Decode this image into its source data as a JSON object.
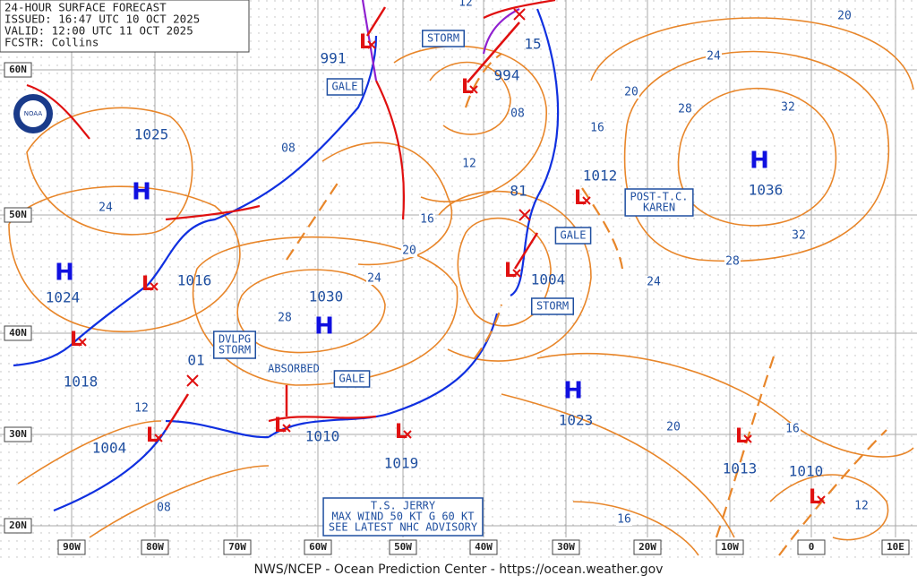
{
  "header": {
    "lines": [
      "24-HOUR SURFACE FORECAST",
      "ISSUED: 16:47 UTC 10 OCT 2025",
      "VALID: 12:00 UTC 11 OCT 2025",
      "FCSTR: Collins"
    ]
  },
  "lat_labels": [
    "60N",
    "50N",
    "40N",
    "30N",
    "20N"
  ],
  "lon_labels": [
    "90W",
    "80W",
    "70W",
    "60W",
    "50W",
    "40W",
    "30W",
    "20W",
    "10W",
    "0",
    "10E"
  ],
  "highs": [
    {
      "symbol": "H",
      "pressure": 1025
    },
    {
      "symbol": "H",
      "pressure": 1024
    },
    {
      "symbol": "H",
      "pressure": 1030
    },
    {
      "symbol": "H",
      "pressure": 1023
    },
    {
      "symbol": "H",
      "pressure": 1036
    }
  ],
  "lows": [
    {
      "symbol": "L",
      "pressure": 991
    },
    {
      "symbol": "L",
      "pressure": 994
    },
    {
      "symbol": "L",
      "pressure": 1016
    },
    {
      "symbol": "L",
      "pressure": 1018
    },
    {
      "symbol": "L",
      "pressure": 1004
    },
    {
      "symbol": "L",
      "pressure": 1010
    },
    {
      "symbol": "L",
      "pressure": 1019
    },
    {
      "symbol": "L",
      "pressure": 1004
    },
    {
      "symbol": "L",
      "pressure": 1012
    },
    {
      "symbol": "L",
      "pressure": 1013
    },
    {
      "symbol": "L",
      "pressure": 1010
    }
  ],
  "pressure_labels": [
    "81",
    "15",
    "01"
  ],
  "isobar_labels": [
    "12",
    "08",
    "24",
    "08",
    "12",
    "16",
    "20",
    "24",
    "28",
    "16",
    "20",
    "24",
    "28",
    "32",
    "20",
    "32",
    "28",
    "24",
    "20",
    "16",
    "12",
    "16",
    "08",
    "12"
  ],
  "boxes": [
    {
      "lines": [
        "STORM"
      ]
    },
    {
      "lines": [
        "GALE"
      ]
    },
    {
      "lines": [
        "POST-T.C.",
        "KAREN"
      ]
    },
    {
      "lines": [
        "GALE"
      ]
    },
    {
      "lines": [
        "STORM"
      ]
    },
    {
      "lines": [
        "DVLPG",
        "STORM"
      ]
    },
    {
      "lines": [
        "GALE"
      ]
    },
    {
      "lines": [
        "T.S. JERRY",
        "MAX WIND 50 KT G 60 KT",
        "SEE LATEST NHC ADVISORY"
      ]
    }
  ],
  "annotations": [
    "ABSORBED"
  ],
  "footer": "NWS/NCEP - Ocean Prediction Center - https://ocean.weather.gov"
}
